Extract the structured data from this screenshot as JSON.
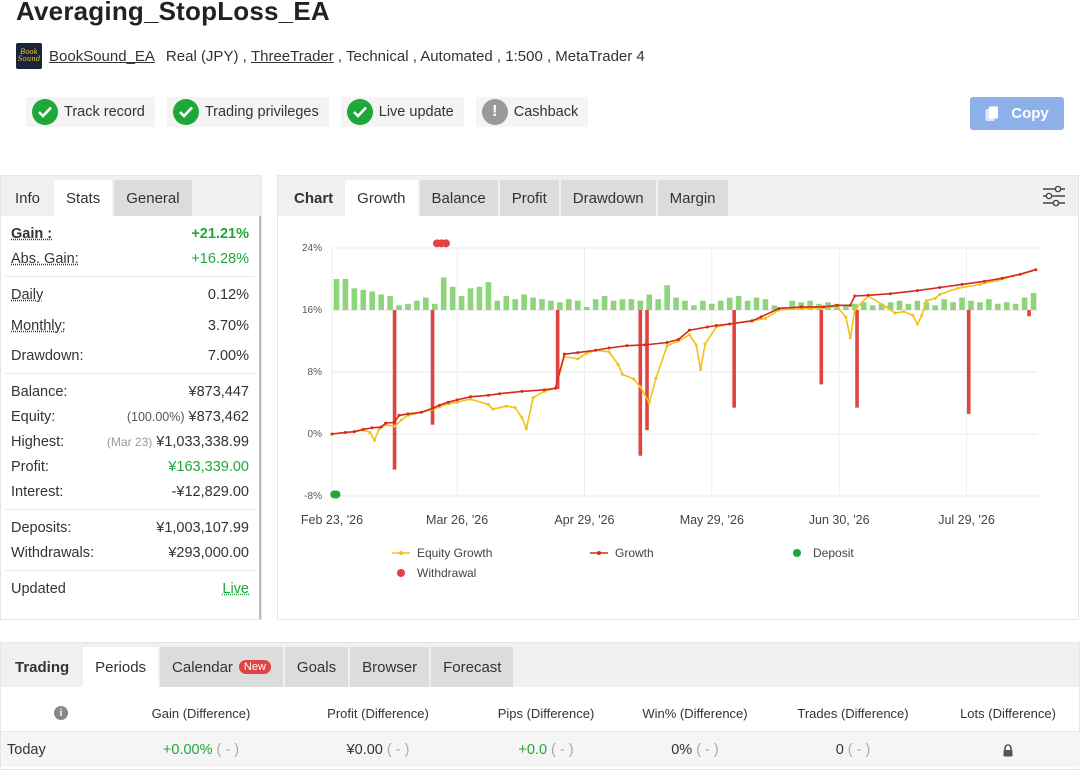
{
  "header": {
    "title": "Averaging_StopLoss_EA",
    "logo_line1": "Book",
    "logo_line2": "Sound",
    "author": "BookSound_EA",
    "account": "Real (JPY) , ",
    "broker": "ThreeTrader",
    "rest": " , Technical , Automated , 1:500 , MetaTrader 4"
  },
  "badges": [
    {
      "label": "Track record",
      "icon": "check-icon"
    },
    {
      "label": "Trading privileges",
      "icon": "check-icon"
    },
    {
      "label": "Live update",
      "icon": "check-icon"
    },
    {
      "label": "Cashback",
      "icon": "exclamation-icon",
      "mark": "!"
    }
  ],
  "copy_button": {
    "label": "Copy"
  },
  "left_tabs": [
    "Info",
    "Stats",
    "General"
  ],
  "stats": {
    "gain": {
      "label": "Gain :",
      "value": "+21.21%"
    },
    "abs_gain": {
      "label": "Abs. Gain:",
      "value": "+16.28%"
    },
    "daily": {
      "label": "Daily",
      "value": "0.12%"
    },
    "monthly": {
      "label": "Monthly:",
      "value": "3.70%"
    },
    "drawdown": {
      "label": "Drawdown:",
      "value": "7.00%"
    },
    "balance": {
      "label": "Balance:",
      "value": "¥873,447"
    },
    "equity": {
      "label": "Equity:",
      "note": "(100.00%)",
      "value": "¥873,462"
    },
    "highest": {
      "label": "Highest:",
      "note": "(Mar 23)",
      "value": "¥1,033,338.99"
    },
    "profit": {
      "label": "Profit:",
      "value": "¥163,339.00"
    },
    "interest": {
      "label": "Interest:",
      "value": "-¥12,829.00"
    },
    "deposits": {
      "label": "Deposits:",
      "value": "¥1,003,107.99"
    },
    "withdrawals": {
      "label": "Withdrawals:",
      "value": "¥293,000.00"
    },
    "updated": {
      "label": "Updated",
      "value": "Live"
    }
  },
  "chart_tabs": [
    "Chart",
    "Growth",
    "Balance",
    "Profit",
    "Drawdown",
    "Margin"
  ],
  "chart_data": {
    "type": "line",
    "y_ticks": [
      "24%",
      "16%",
      "8%",
      "0%",
      "-8%"
    ],
    "x_ticks": [
      "Feb 23, '26",
      "Mar 26, '26",
      "Apr 29, '26",
      "May 29, '26",
      "Jun 30, '26",
      "Jul 29, '26"
    ],
    "ylim": [
      -8,
      24
    ],
    "legend": [
      "Equity Growth",
      "Growth",
      "Deposit",
      "Withdrawal"
    ],
    "colors": {
      "equity": "#f2c218",
      "growth": "#d52b1e",
      "deposit": "#1fa83a",
      "withdrawal": "#e14242",
      "bars": "#8ed47d"
    },
    "growth": [
      [
        0,
        0
      ],
      [
        6,
        0.2
      ],
      [
        10,
        0.3
      ],
      [
        14,
        0.6
      ],
      [
        18,
        0.8
      ],
      [
        22,
        0.9
      ],
      [
        24,
        1.4
      ],
      [
        28,
        1.5
      ],
      [
        30,
        2.4
      ],
      [
        34,
        2.6
      ],
      [
        40,
        2.8
      ],
      [
        45,
        3.3
      ],
      [
        48,
        3.7
      ],
      [
        52,
        4.1
      ],
      [
        56,
        4.4
      ],
      [
        62,
        4.8
      ],
      [
        70,
        5
      ],
      [
        75,
        5.2
      ],
      [
        85,
        5.5
      ],
      [
        95,
        5.7
      ],
      [
        100,
        5.9
      ],
      [
        104,
        10.3
      ],
      [
        110,
        10.5
      ],
      [
        118,
        10.8
      ],
      [
        124,
        11.1
      ],
      [
        132,
        11.4
      ],
      [
        140,
        11.5
      ],
      [
        150,
        11.8
      ],
      [
        155,
        12.2
      ],
      [
        160,
        13.4
      ],
      [
        168,
        13.8
      ],
      [
        172,
        14
      ],
      [
        178,
        14.2
      ],
      [
        188,
        14.6
      ],
      [
        192,
        15.1
      ],
      [
        200,
        16.2
      ],
      [
        210,
        16.4
      ],
      [
        220,
        16.4
      ],
      [
        226,
        16.6
      ],
      [
        232,
        16.6
      ],
      [
        234,
        17.8
      ],
      [
        240,
        17.9
      ],
      [
        250,
        18.1
      ],
      [
        262,
        18.5
      ],
      [
        272,
        18.9
      ],
      [
        282,
        19.3
      ],
      [
        292,
        19.7
      ],
      [
        300,
        20.1
      ],
      [
        308,
        20.6
      ],
      [
        315,
        21.2
      ]
    ],
    "equity": [
      [
        0,
        0
      ],
      [
        6,
        0.2
      ],
      [
        10,
        0.3
      ],
      [
        14,
        0.5
      ],
      [
        17,
        0.2
      ],
      [
        19,
        -0.8
      ],
      [
        21,
        0.6
      ],
      [
        24,
        1.2
      ],
      [
        28,
        1.0
      ],
      [
        31,
        1.8
      ],
      [
        34,
        2.4
      ],
      [
        40,
        2.8
      ],
      [
        45,
        3.2
      ],
      [
        48,
        3.5
      ],
      [
        52,
        3.9
      ],
      [
        56,
        4.1
      ],
      [
        62,
        4.5
      ],
      [
        70,
        3.8
      ],
      [
        72,
        3.2
      ],
      [
        78,
        3.6
      ],
      [
        82,
        3.4
      ],
      [
        85,
        2.1
      ],
      [
        87,
        0.7
      ],
      [
        90,
        4.7
      ],
      [
        95,
        5.5
      ],
      [
        100,
        5.9
      ],
      [
        104,
        10
      ],
      [
        110,
        9.7
      ],
      [
        114,
        10.4
      ],
      [
        118,
        10.8
      ],
      [
        124,
        10.6
      ],
      [
        128,
        9
      ],
      [
        130,
        7.7
      ],
      [
        135,
        7.1
      ],
      [
        138,
        6.1
      ],
      [
        142,
        4
      ],
      [
        145,
        7.2
      ],
      [
        150,
        11.4
      ],
      [
        155,
        12
      ],
      [
        160,
        12.8
      ],
      [
        163,
        11.5
      ],
      [
        165,
        8.3
      ],
      [
        167,
        11.6
      ],
      [
        172,
        13.8
      ],
      [
        178,
        14.2
      ],
      [
        188,
        14.6
      ],
      [
        194,
        14.9
      ],
      [
        200,
        16
      ],
      [
        210,
        16.2
      ],
      [
        220,
        16.3
      ],
      [
        226,
        16.4
      ],
      [
        230,
        15.1
      ],
      [
        232,
        12.4
      ],
      [
        234,
        16
      ],
      [
        240,
        17.8
      ],
      [
        248,
        16.4
      ],
      [
        252,
        15.6
      ],
      [
        256,
        15.8
      ],
      [
        260,
        15.3
      ],
      [
        262,
        14.2
      ],
      [
        264,
        15.3
      ],
      [
        266,
        17.2
      ],
      [
        270,
        17.5
      ],
      [
        272,
        18
      ],
      [
        280,
        18.8
      ],
      [
        290,
        19.3
      ],
      [
        298,
        19.8
      ],
      [
        305,
        20.4
      ],
      [
        315,
        21.2
      ]
    ],
    "bars": [
      [
        2,
        4
      ],
      [
        6,
        4
      ],
      [
        10,
        2.8
      ],
      [
        14,
        2.6
      ],
      [
        18,
        2.4
      ],
      [
        22,
        2.0
      ],
      [
        26,
        1.8
      ],
      [
        30,
        0.6
      ],
      [
        34,
        0.8
      ],
      [
        38,
        1.2
      ],
      [
        42,
        1.6
      ],
      [
        46,
        0.8
      ],
      [
        50,
        4.2
      ],
      [
        54,
        3
      ],
      [
        58,
        1.8
      ],
      [
        62,
        2.8
      ],
      [
        66,
        3
      ],
      [
        70,
        3.6
      ],
      [
        74,
        1.2
      ],
      [
        78,
        1.8
      ],
      [
        82,
        1.4
      ],
      [
        86,
        2
      ],
      [
        90,
        1.6
      ],
      [
        94,
        1.4
      ],
      [
        98,
        1.2
      ],
      [
        102,
        1.0
      ],
      [
        106,
        1.4
      ],
      [
        110,
        1.2
      ],
      [
        114,
        0.4
      ],
      [
        118,
        1.4
      ],
      [
        122,
        1.8
      ],
      [
        126,
        1.2
      ],
      [
        130,
        1.4
      ],
      [
        134,
        1.4
      ],
      [
        138,
        1.2
      ],
      [
        142,
        2
      ],
      [
        146,
        1.4
      ],
      [
        150,
        3.2
      ],
      [
        154,
        1.6
      ],
      [
        158,
        1.2
      ],
      [
        162,
        0.6
      ],
      [
        166,
        1.2
      ],
      [
        170,
        0.8
      ],
      [
        174,
        1.2
      ],
      [
        178,
        1.6
      ],
      [
        182,
        1.8
      ],
      [
        186,
        1.2
      ],
      [
        190,
        1.6
      ],
      [
        194,
        1.4
      ],
      [
        198,
        0.6
      ],
      [
        202,
        0.4
      ],
      [
        206,
        1.2
      ],
      [
        210,
        1.0
      ],
      [
        214,
        1.2
      ],
      [
        218,
        0.8
      ],
      [
        222,
        1.0
      ],
      [
        226,
        0.8
      ],
      [
        230,
        0.6
      ],
      [
        234,
        0.8
      ],
      [
        238,
        1.0
      ],
      [
        242,
        0.6
      ],
      [
        246,
        0.8
      ],
      [
        250,
        1.0
      ],
      [
        254,
        1.2
      ],
      [
        258,
        0.8
      ],
      [
        262,
        1.2
      ],
      [
        266,
        1.0
      ],
      [
        270,
        0.6
      ],
      [
        274,
        1.4
      ],
      [
        278,
        1.0
      ],
      [
        282,
        1.6
      ],
      [
        286,
        1.2
      ],
      [
        290,
        1.0
      ],
      [
        294,
        1.4
      ],
      [
        298,
        0.8
      ],
      [
        302,
        1.0
      ],
      [
        306,
        0.8
      ],
      [
        310,
        1.6
      ],
      [
        314,
        2.2
      ]
    ],
    "withdrawal_bars": [
      [
        28,
        16,
        -4.6
      ],
      [
        45,
        16,
        1.2
      ],
      [
        101,
        16,
        5.8
      ],
      [
        138,
        16,
        -2.8
      ],
      [
        141,
        16,
        0.5
      ],
      [
        180,
        16,
        3.4
      ],
      [
        219,
        16,
        6.4
      ],
      [
        235,
        16,
        3.4
      ],
      [
        285,
        16,
        2.6
      ],
      [
        312,
        16,
        15.2
      ]
    ],
    "deposit_markers": [
      [
        1,
        -7.8
      ],
      [
        2,
        -7.8
      ]
    ],
    "withdrawal_markers": [
      [
        47,
        24.6
      ],
      [
        49,
        24.6
      ],
      [
        51,
        24.6
      ]
    ]
  },
  "bottom_tabs": [
    "Trading",
    "Periods",
    "Calendar",
    "Goals",
    "Browser",
    "Forecast"
  ],
  "calendar_badge": "New",
  "table": {
    "headers": [
      "Gain (Difference)",
      "Profit (Difference)",
      "Pips (Difference)",
      "Win% (Difference)",
      "Trades (Difference)",
      "Lots (Difference)"
    ],
    "row": {
      "label": "Today",
      "gain": "+0.00%",
      "profit": "¥0.00",
      "pips": "+0.0",
      "win": "0%",
      "trades": "0",
      "diff": "( - )"
    }
  }
}
